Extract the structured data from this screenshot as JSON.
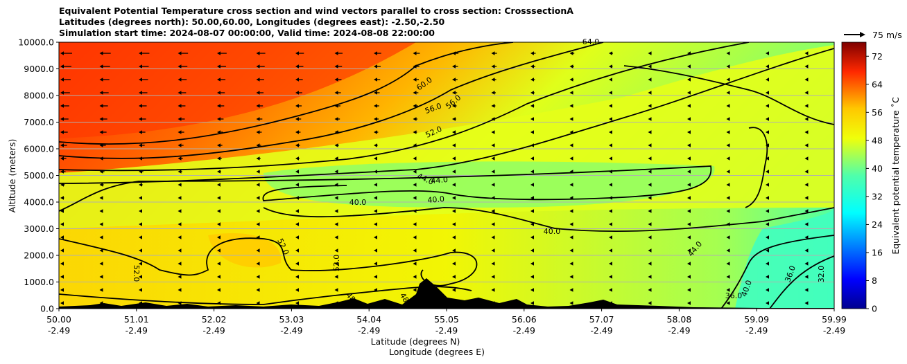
{
  "title": {
    "line1": "Equivalent Potential Temperature cross section and wind vectors parallel to cross section: CrosssectionA",
    "line2": "Latitudes (degrees north): 50.00,60.00, Longitudes (degrees east): -2.50,-2.50",
    "line3": "Simulation start time: 2024-08-07 00:00:00, Valid time: 2024-08-08 22:00:00"
  },
  "chart_data": {
    "type": "heatmap",
    "title": "Equivalent Potential Temperature cross section and wind vectors parallel to cross section: CrosssectionA",
    "ylabel": "Altitude (meters)",
    "xlabel": "Latitude (degrees N)",
    "xlabel2": "Longitude (degrees E)",
    "ylim": [
      0,
      10000
    ],
    "xlim": [
      50.0,
      59.99
    ],
    "y_ticks": [
      "0.0",
      "1000.0",
      "2000.0",
      "3000.0",
      "4000.0",
      "5000.0",
      "6000.0",
      "7000.0",
      "8000.0",
      "9000.0",
      "10000.0"
    ],
    "x_ticks": [
      {
        "lat": "50.00",
        "lon": "-2.49"
      },
      {
        "lat": "51.01",
        "lon": "-2.49"
      },
      {
        "lat": "52.02",
        "lon": "-2.49"
      },
      {
        "lat": "53.03",
        "lon": "-2.49"
      },
      {
        "lat": "54.04",
        "lon": "-2.49"
      },
      {
        "lat": "55.05",
        "lon": "-2.49"
      },
      {
        "lat": "56.06",
        "lon": "-2.49"
      },
      {
        "lat": "57.07",
        "lon": "-2.49"
      },
      {
        "lat": "58.08",
        "lon": "-2.49"
      },
      {
        "lat": "59.09",
        "lon": "-2.49"
      },
      {
        "lat": "59.99",
        "lon": "-2.49"
      }
    ],
    "colorbar": {
      "label": "Equivalent potential temperature $^\\circ$C",
      "display_label": "Equivalent potential temperature ˚C",
      "min": 0,
      "max": 76,
      "ticks": [
        "0",
        "8",
        "16",
        "24",
        "32",
        "40",
        "48",
        "56",
        "64",
        "72"
      ]
    },
    "quiver_key": "75 m/s",
    "contour_labels": [
      "52.0",
      "52.0",
      "52.0",
      "40.0",
      "40.0",
      "40.0",
      "44.0",
      "44.0",
      "44.0",
      "52.0",
      "56.0",
      "56.0",
      "60.0",
      "64.0",
      "48",
      "48",
      "48",
      "36.0",
      "36.0",
      "32.0",
      "40.0"
    ],
    "grid": true
  },
  "colors": {
    "terrain": "#000000",
    "contour": "#000000",
    "arrow": "#000000"
  }
}
